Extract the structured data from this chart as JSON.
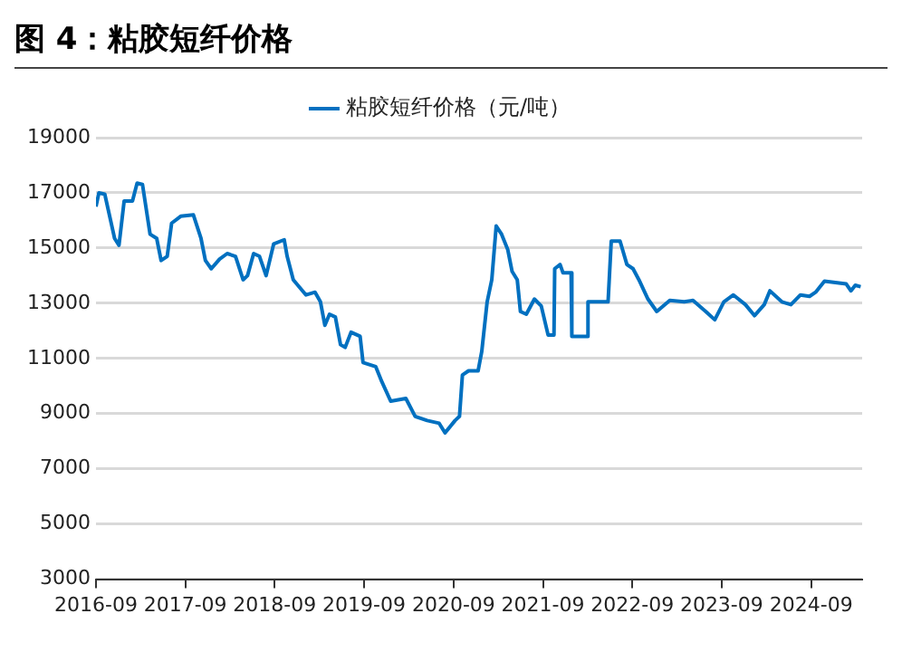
{
  "chart_data": {
    "type": "line",
    "title": "图 4：粘胶短纤价格",
    "x": [
      "2016-09-01",
      "2016-09-13",
      "2016-10-07",
      "2016-11-16",
      "2016-12-04",
      "2016-12-25",
      "2017-01-28",
      "2017-02-16",
      "2017-03-10",
      "2017-04-10",
      "2017-05-07",
      "2017-05-25",
      "2017-06-19",
      "2017-07-07",
      "2017-08-13",
      "2017-10-04",
      "2017-11-04",
      "2017-11-22",
      "2017-12-16",
      "2018-01-19",
      "2018-02-19",
      "2018-03-25",
      "2018-04-25",
      "2018-05-13",
      "2018-06-07",
      "2018-07-01",
      "2018-07-28",
      "2018-08-28",
      "2018-10-10",
      "2018-10-22",
      "2018-11-16",
      "2019-01-07",
      "2019-02-13",
      "2019-03-07",
      "2019-03-25",
      "2019-04-13",
      "2019-05-07",
      "2019-05-28",
      "2019-06-16",
      "2019-07-10",
      "2019-08-16",
      "2019-08-28",
      "2019-10-19",
      "2019-11-13",
      "2019-12-19",
      "2020-02-19",
      "2020-03-28",
      "2020-05-16",
      "2020-07-04",
      "2020-07-28",
      "2020-09-07",
      "2020-09-25",
      "2020-10-07",
      "2020-11-01",
      "2020-12-10",
      "2020-12-25",
      "2021-01-16",
      "2021-02-04",
      "2021-02-22",
      "2021-03-16",
      "2021-04-10",
      "2021-04-28",
      "2021-05-19",
      "2021-06-01",
      "2021-06-25",
      "2021-07-28",
      "2021-08-25",
      "2021-09-22",
      "2021-10-16",
      "2021-10-19",
      "2021-11-10",
      "2021-11-22",
      "2021-12-25",
      "2021-12-28",
      "2022-03-01",
      "2022-03-04",
      "2022-05-25",
      "2022-06-07",
      "2022-07-13",
      "2022-08-10",
      "2022-09-04",
      "2022-09-28",
      "2022-11-04",
      "2022-12-10",
      "2023-02-01",
      "2023-04-01",
      "2023-05-07",
      "2023-06-28",
      "2023-08-04",
      "2023-09-10",
      "2023-10-19",
      "2023-12-07",
      "2024-01-13",
      "2024-02-22",
      "2024-03-16",
      "2024-05-04",
      "2024-06-10",
      "2024-07-19",
      "2024-08-25",
      "2024-09-19",
      "2024-10-25",
      "2025-01-22",
      "2025-02-10",
      "2025-02-28",
      "2025-03-22"
    ],
    "series": [
      {
        "name": "粘胶短纤价格（元/吨）",
        "color": "#0070c0",
        "values": [
          16500,
          17000,
          16950,
          15350,
          15100,
          16700,
          16700,
          17350,
          17300,
          15500,
          15350,
          14550,
          14700,
          15900,
          16150,
          16200,
          15350,
          14550,
          14250,
          14600,
          14800,
          14700,
          13850,
          14000,
          14800,
          14700,
          14000,
          15150,
          15300,
          14700,
          13850,
          13300,
          13400,
          13050,
          12200,
          12600,
          12500,
          11500,
          11400,
          11950,
          11800,
          10850,
          10700,
          10150,
          9450,
          9550,
          8900,
          8750,
          8650,
          8300,
          8750,
          8900,
          10400,
          10550,
          10550,
          11250,
          13050,
          13850,
          15800,
          15500,
          14950,
          14150,
          13850,
          12700,
          12600,
          13150,
          12900,
          11850,
          11850,
          14250,
          14400,
          14100,
          14100,
          11800,
          11800,
          13050,
          13050,
          15250,
          15250,
          14400,
          14250,
          13850,
          13150,
          12700,
          13100,
          13050,
          13100,
          12700,
          12400,
          13050,
          13300,
          12950,
          12550,
          12950,
          13450,
          13050,
          12950,
          13300,
          13250,
          13400,
          13800,
          13700,
          13450,
          13650,
          13600
        ]
      }
    ],
    "xlim": [
      "2016-09-01",
      "2025-03-28"
    ],
    "xticks": [
      "2016-09",
      "2017-09",
      "2018-09",
      "2019-09",
      "2020-09",
      "2021-09",
      "2022-09",
      "2023-09",
      "2024-09"
    ],
    "ylim": [
      3000,
      19000
    ],
    "yticks": [
      3000,
      5000,
      7000,
      9000,
      11000,
      13000,
      15000,
      17000,
      19000
    ],
    "grid": "y",
    "legend": "top",
    "marker": "none",
    "line_style": "solid"
  }
}
